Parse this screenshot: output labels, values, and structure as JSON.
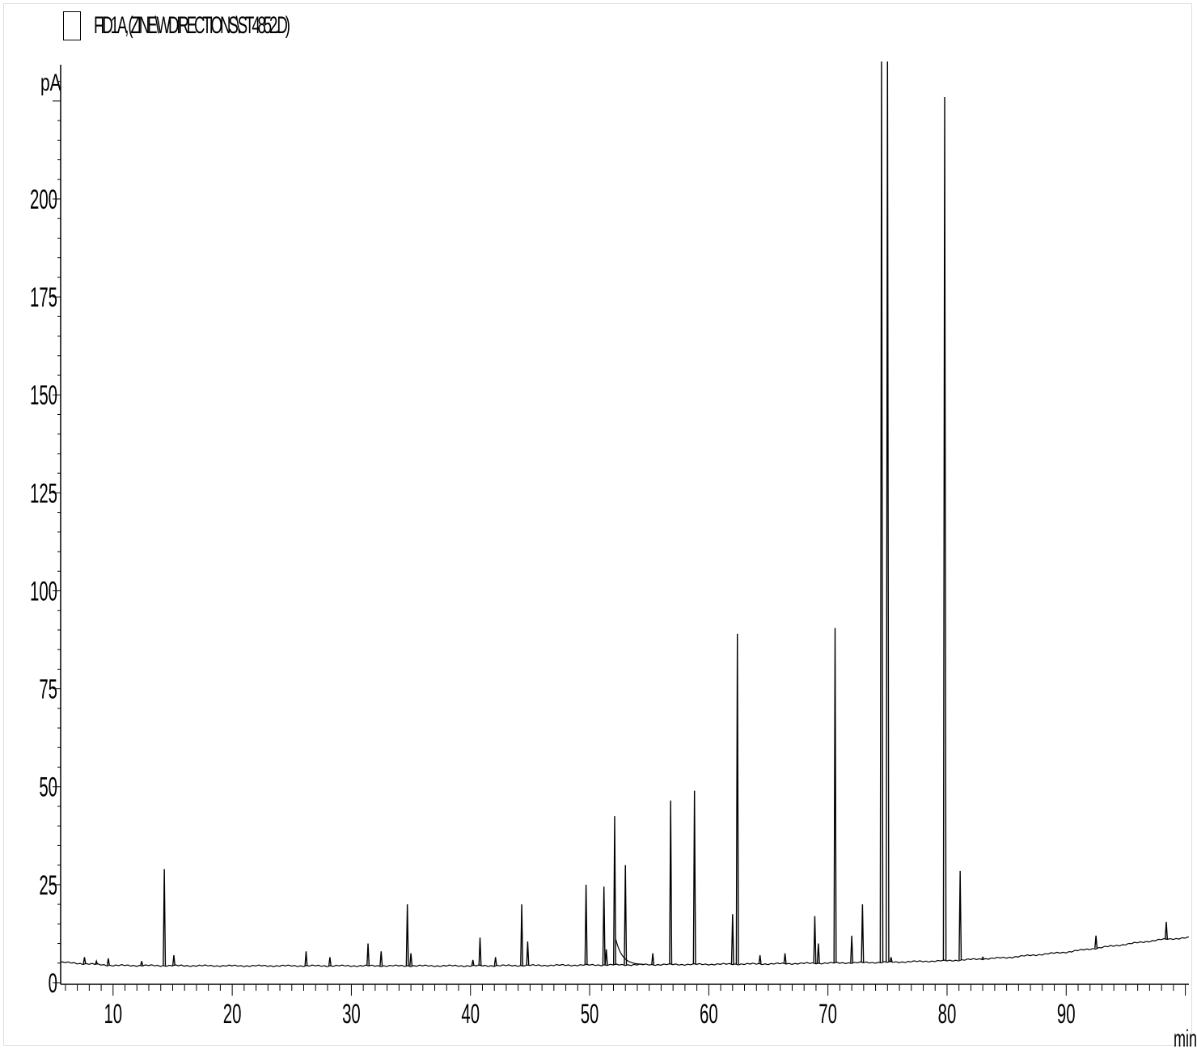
{
  "legend": {
    "label": "FID1 A, (ZINE\\WDIRECTIONS\\ST4852.D)",
    "box_color": "#000000"
  },
  "chart_data": {
    "type": "line",
    "title": "",
    "xlabel": "min",
    "ylabel": "pA",
    "xlim": [
      5.6,
      100.3
    ],
    "ylim": [
      0,
      232
    ],
    "x_ticks": [
      10,
      20,
      30,
      40,
      50,
      60,
      70,
      80,
      90
    ],
    "x_tick_labels": [
      "10",
      "20",
      "30",
      "40",
      "50",
      "60",
      "70",
      "80",
      "90"
    ],
    "y_ticks": [
      0,
      25,
      50,
      75,
      100,
      125,
      150,
      175,
      200
    ],
    "y_tick_labels": [
      "0",
      "25",
      "50",
      "75",
      "100",
      "125",
      "150",
      "175",
      "200"
    ],
    "grid": false,
    "line_color": "#000000",
    "baseline": [
      [
        5.6,
        5.2
      ],
      [
        10,
        4.4
      ],
      [
        20,
        4.3
      ],
      [
        40,
        4.3
      ],
      [
        55,
        4.6
      ],
      [
        65,
        4.8
      ],
      [
        75,
        5.2
      ],
      [
        80,
        5.6
      ],
      [
        85,
        6.4
      ],
      [
        90,
        7.8
      ],
      [
        95,
        9.8
      ],
      [
        98,
        11.0
      ],
      [
        100.3,
        11.5
      ]
    ],
    "peaks": [
      {
        "rt": 7.6,
        "height": 6.5
      },
      {
        "rt": 8.6,
        "height": 5.5
      },
      {
        "rt": 9.6,
        "height": 6.2
      },
      {
        "rt": 12.4,
        "height": 5.5
      },
      {
        "rt": 14.3,
        "height": 29.0
      },
      {
        "rt": 15.1,
        "height": 7.0
      },
      {
        "rt": 26.2,
        "height": 8.0
      },
      {
        "rt": 28.2,
        "height": 6.5
      },
      {
        "rt": 31.4,
        "height": 10.0
      },
      {
        "rt": 32.5,
        "height": 8.0
      },
      {
        "rt": 34.7,
        "height": 20.0
      },
      {
        "rt": 35.0,
        "height": 7.5
      },
      {
        "rt": 40.8,
        "height": 11.5
      },
      {
        "rt": 40.2,
        "height": 5.8
      },
      {
        "rt": 42.1,
        "height": 6.5
      },
      {
        "rt": 44.3,
        "height": 20.0
      },
      {
        "rt": 44.8,
        "height": 10.5
      },
      {
        "rt": 49.7,
        "height": 25.0
      },
      {
        "rt": 51.2,
        "height": 24.5
      },
      {
        "rt": 51.4,
        "height": 8.5
      },
      {
        "rt": 52.1,
        "height": 42.5
      },
      {
        "rt": 53.0,
        "height": 30.0
      },
      {
        "rt": 55.3,
        "height": 7.5
      },
      {
        "rt": 56.8,
        "height": 46.5
      },
      {
        "rt": 58.8,
        "height": 49.0
      },
      {
        "rt": 62.0,
        "height": 17.5
      },
      {
        "rt": 62.4,
        "height": 89.0
      },
      {
        "rt": 64.3,
        "height": 7.0
      },
      {
        "rt": 66.4,
        "height": 7.5
      },
      {
        "rt": 68.9,
        "height": 17.0
      },
      {
        "rt": 69.2,
        "height": 10.0
      },
      {
        "rt": 70.6,
        "height": 90.5
      },
      {
        "rt": 72.0,
        "height": 12.0
      },
      {
        "rt": 72.9,
        "height": 20.0
      },
      {
        "rt": 74.5,
        "height": 240.0
      },
      {
        "rt": 75.0,
        "height": 240.0
      },
      {
        "rt": 75.3,
        "height": 6.5
      },
      {
        "rt": 79.8,
        "height": 226.0
      },
      {
        "rt": 81.1,
        "height": 28.5
      },
      {
        "rt": 83.0,
        "height": 6.5
      },
      {
        "rt": 92.5,
        "height": 12.0
      },
      {
        "rt": 98.4,
        "height": 15.5
      }
    ]
  }
}
